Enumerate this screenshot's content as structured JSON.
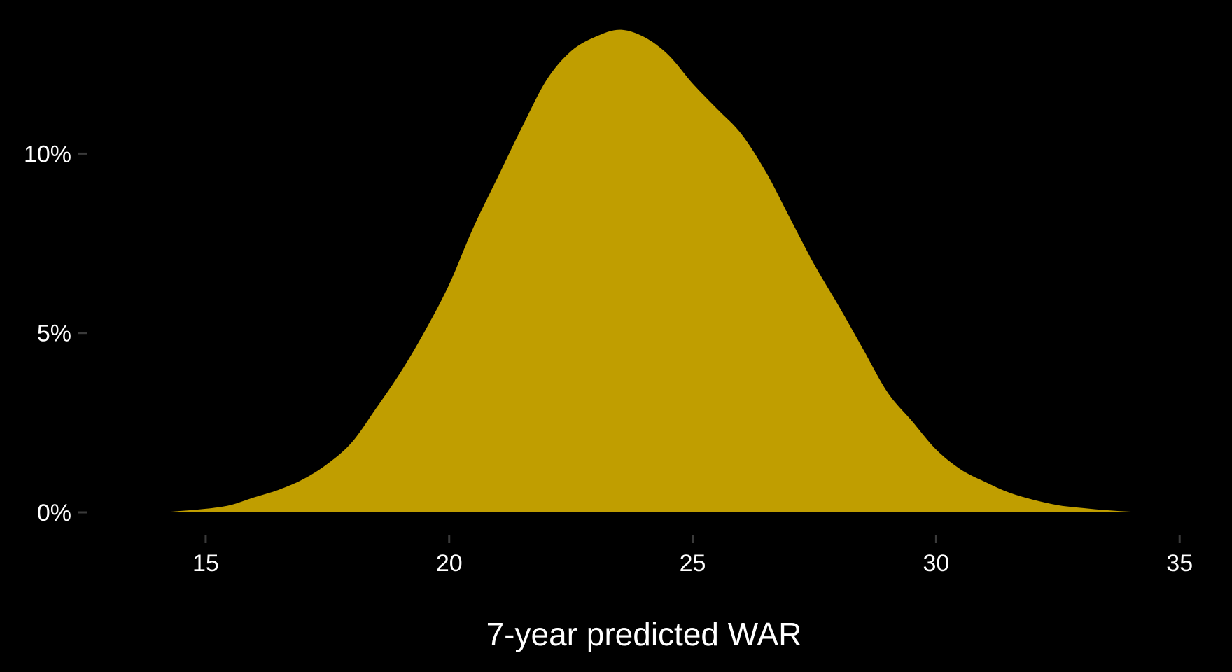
{
  "chart_data": {
    "type": "area",
    "subtype": "density",
    "title": "",
    "xlabel": "7-year predicted WAR",
    "ylabel": "",
    "xlim": [
      12.5,
      35.5
    ],
    "ylim": [
      0,
      0.135
    ],
    "x_ticks": [
      15,
      20,
      25,
      30,
      35
    ],
    "x_tick_labels": [
      "15",
      "20",
      "25",
      "30",
      "35"
    ],
    "y_ticks": [
      0,
      0.05,
      0.1
    ],
    "y_tick_labels": [
      "0%",
      "5%",
      "10%"
    ],
    "grid": false,
    "legend": "none",
    "fill_color": "#C09E00",
    "background_color": "#000000",
    "text_color": "#FFFFFF",
    "tick_color": "#3A3A3A",
    "series": [
      {
        "x": [
          14,
          14.5,
          15,
          15.5,
          16,
          16.5,
          17,
          17.5,
          18,
          18.5,
          19,
          19.5,
          20,
          20.5,
          21,
          21.5,
          22,
          22.5,
          23,
          23.5,
          24,
          24.5,
          25,
          25.5,
          26,
          26.5,
          27,
          27.5,
          28,
          28.5,
          29,
          29.5,
          30,
          30.5,
          31,
          31.5,
          32,
          32.5,
          33,
          33.5,
          34,
          34.5,
          34.8
        ],
        "y": [
          0.0,
          0.0004,
          0.001,
          0.002,
          0.0042,
          0.0063,
          0.0092,
          0.0135,
          0.0195,
          0.029,
          0.039,
          0.0505,
          0.0635,
          0.0795,
          0.0935,
          0.1075,
          0.1205,
          0.1285,
          0.1325,
          0.1345,
          0.1325,
          0.1275,
          0.1195,
          0.1125,
          0.1055,
          0.095,
          0.082,
          0.069,
          0.0575,
          0.0455,
          0.0335,
          0.0255,
          0.0175,
          0.012,
          0.0085,
          0.0055,
          0.0035,
          0.002,
          0.0012,
          0.0006,
          0.0002,
          0.0001,
          0.0
        ]
      }
    ]
  }
}
